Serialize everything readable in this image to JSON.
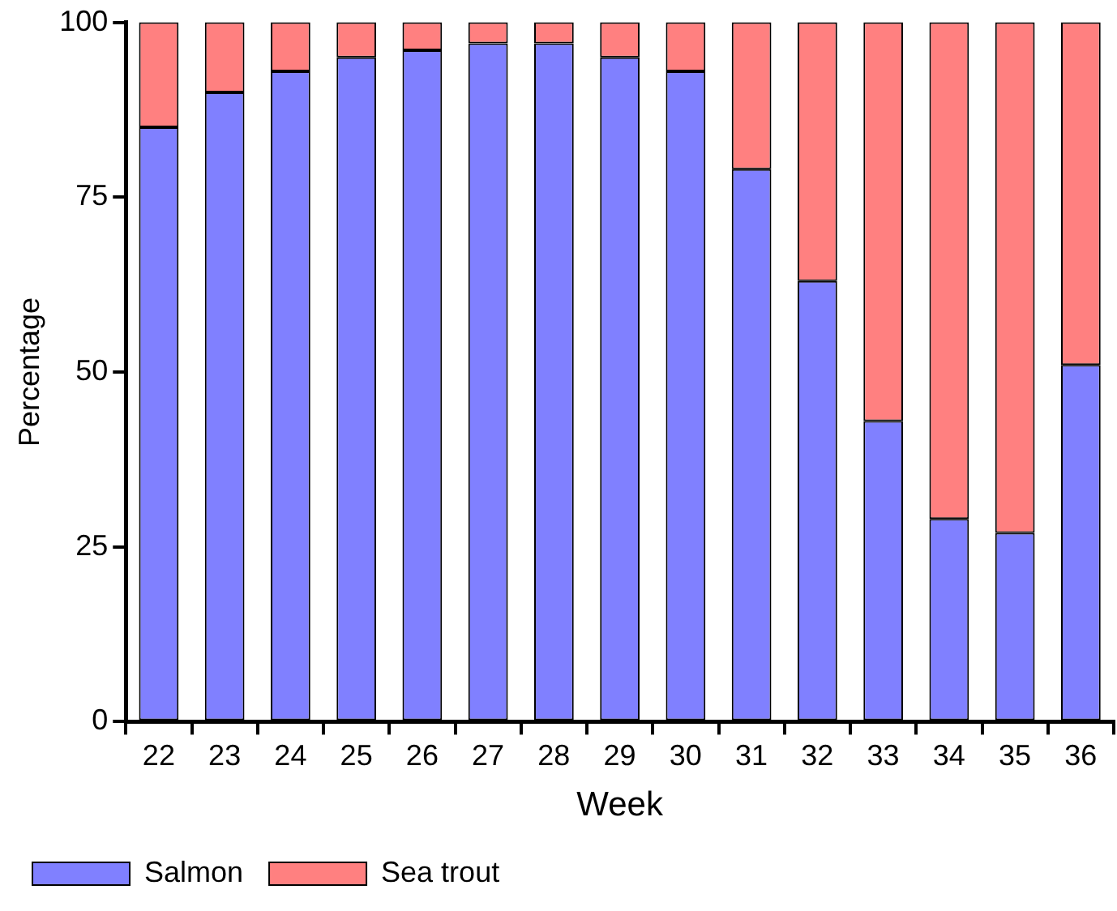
{
  "chart_data": {
    "type": "bar",
    "stacked": true,
    "xlabel": "Week",
    "ylabel": "Percentage",
    "categories": [
      "22",
      "23",
      "24",
      "25",
      "26",
      "27",
      "28",
      "29",
      "30",
      "31",
      "32",
      "33",
      "34",
      "35",
      "36"
    ],
    "series": [
      {
        "name": "Salmon",
        "color": "#8080ff",
        "values": [
          85,
          90,
          93,
          95,
          96,
          97,
          97,
          95,
          93,
          79,
          63,
          43,
          29,
          27,
          51
        ]
      },
      {
        "name": "Sea trout",
        "color": "#ff8080",
        "values": [
          15,
          10,
          7,
          5,
          4,
          3,
          3,
          5,
          7,
          21,
          37,
          57,
          71,
          73,
          49
        ]
      }
    ],
    "ylim": [
      0,
      100
    ],
    "yticks": [
      0,
      25,
      50,
      75,
      100
    ],
    "grid": false,
    "legend": "bottom left"
  }
}
